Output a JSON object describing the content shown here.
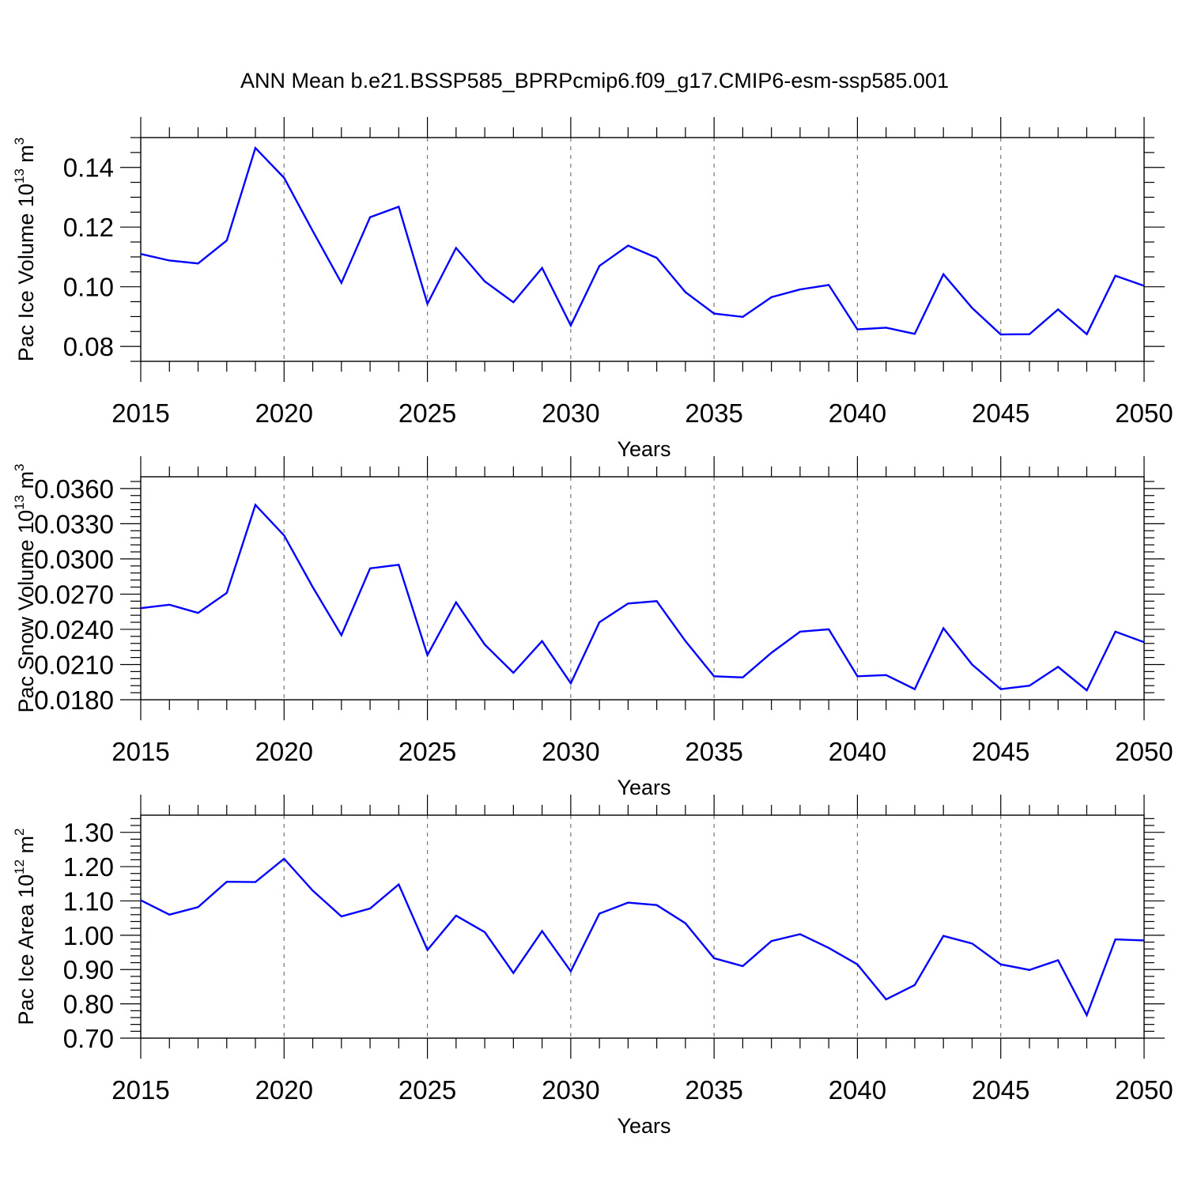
{
  "title": "ANN Mean b.e21.BSSP585_BPRPcmip6.f09_g17.CMIP6-esm-ssp585.001",
  "chart_data": [
    {
      "type": "line",
      "ylabel_main": "Pac Ice Volume 10",
      "ylabel_exp": "13",
      "ylabel_unit": "m",
      "ylabel_unit_exp": "3",
      "xlabel": "Years",
      "xlim": [
        2015,
        2050
      ],
      "ylim": [
        0.075,
        0.15
      ],
      "x_ticks": [
        "2015",
        "2020",
        "2025",
        "2030",
        "2035",
        "2040",
        "2045",
        "2050"
      ],
      "y_ticks": [
        "0.08",
        "0.10",
        "0.12",
        "0.14"
      ],
      "grid": "vertical dashed at major x ticks",
      "line_color": "#0000ff",
      "x": [
        2015,
        2016,
        2017,
        2018,
        2019,
        2020,
        2021,
        2022,
        2023,
        2024,
        2025,
        2026,
        2027,
        2028,
        2029,
        2030,
        2031,
        2032,
        2033,
        2034,
        2035,
        2036,
        2037,
        2038,
        2039,
        2040,
        2041,
        2042,
        2043,
        2044,
        2045,
        2046,
        2047,
        2048,
        2049,
        2050
      ],
      "values": [
        0.111,
        0.1088,
        0.1078,
        0.1155,
        0.1465,
        0.1365,
        0.1187,
        0.1013,
        0.1233,
        0.1268,
        0.0943,
        0.113,
        0.1018,
        0.0948,
        0.1063,
        0.087,
        0.107,
        0.1138,
        0.1097,
        0.0982,
        0.091,
        0.0899,
        0.0965,
        0.0991,
        0.1006,
        0.0857,
        0.0863,
        0.0842,
        0.1042,
        0.0929,
        0.084,
        0.0841,
        0.0924,
        0.0841,
        0.1037,
        0.1003
      ]
    },
    {
      "type": "line",
      "ylabel_main": "Pac Snow Volume 10",
      "ylabel_exp": "13",
      "ylabel_unit": "m",
      "ylabel_unit_exp": "3",
      "xlabel": "Years",
      "xlim": [
        2015,
        2050
      ],
      "ylim": [
        0.018,
        0.037
      ],
      "x_ticks": [
        "2015",
        "2020",
        "2025",
        "2030",
        "2035",
        "2040",
        "2045",
        "2050"
      ],
      "y_ticks": [
        "0.0180",
        "0.0210",
        "0.0240",
        "0.0270",
        "0.0300",
        "0.0330",
        "0.0360"
      ],
      "grid": "vertical dashed at major x ticks",
      "line_color": "#0000ff",
      "x": [
        2015,
        2016,
        2017,
        2018,
        2019,
        2020,
        2021,
        2022,
        2023,
        2024,
        2025,
        2026,
        2027,
        2028,
        2029,
        2030,
        2031,
        2032,
        2033,
        2034,
        2035,
        2036,
        2037,
        2038,
        2039,
        2040,
        2041,
        2042,
        2043,
        2044,
        2045,
        2046,
        2047,
        2048,
        2049,
        2050
      ],
      "values": [
        0.0258,
        0.0261,
        0.0254,
        0.0271,
        0.0346,
        0.032,
        0.0276,
        0.0235,
        0.0292,
        0.0295,
        0.0218,
        0.0263,
        0.0227,
        0.0203,
        0.023,
        0.0194,
        0.0246,
        0.0262,
        0.0264,
        0.023,
        0.02,
        0.0199,
        0.022,
        0.0238,
        0.024,
        0.02,
        0.0201,
        0.0189,
        0.0241,
        0.021,
        0.0189,
        0.0192,
        0.0208,
        0.0188,
        0.0238,
        0.0229
      ]
    },
    {
      "type": "line",
      "ylabel_main": "Pac Ice Area 10",
      "ylabel_exp": "12",
      "ylabel_unit": "m",
      "ylabel_unit_exp": "2",
      "xlabel": "Years",
      "xlim": [
        2015,
        2050
      ],
      "ylim": [
        0.7,
        1.35
      ],
      "x_ticks": [
        "2015",
        "2020",
        "2025",
        "2030",
        "2035",
        "2040",
        "2045",
        "2050"
      ],
      "y_ticks": [
        "0.70",
        "0.80",
        "0.90",
        "1.00",
        "1.10",
        "1.20",
        "1.30"
      ],
      "grid": "vertical dashed at major x ticks",
      "line_color": "#0000ff",
      "x": [
        2015,
        2016,
        2017,
        2018,
        2019,
        2020,
        2021,
        2022,
        2023,
        2024,
        2025,
        2026,
        2027,
        2028,
        2029,
        2030,
        2031,
        2032,
        2033,
        2034,
        2035,
        2036,
        2037,
        2038,
        2039,
        2040,
        2041,
        2042,
        2043,
        2044,
        2045,
        2046,
        2047,
        2048,
        2049,
        2050
      ],
      "values": [
        1.102,
        1.06,
        1.082,
        1.156,
        1.155,
        1.223,
        1.13,
        1.055,
        1.078,
        1.148,
        0.957,
        1.057,
        1.009,
        0.89,
        1.012,
        0.895,
        1.063,
        1.095,
        1.088,
        1.035,
        0.933,
        0.91,
        0.983,
        1.003,
        0.963,
        0.915,
        0.813,
        0.855,
        0.998,
        0.976,
        0.915,
        0.899,
        0.927,
        0.767,
        0.988,
        0.985
      ]
    }
  ]
}
